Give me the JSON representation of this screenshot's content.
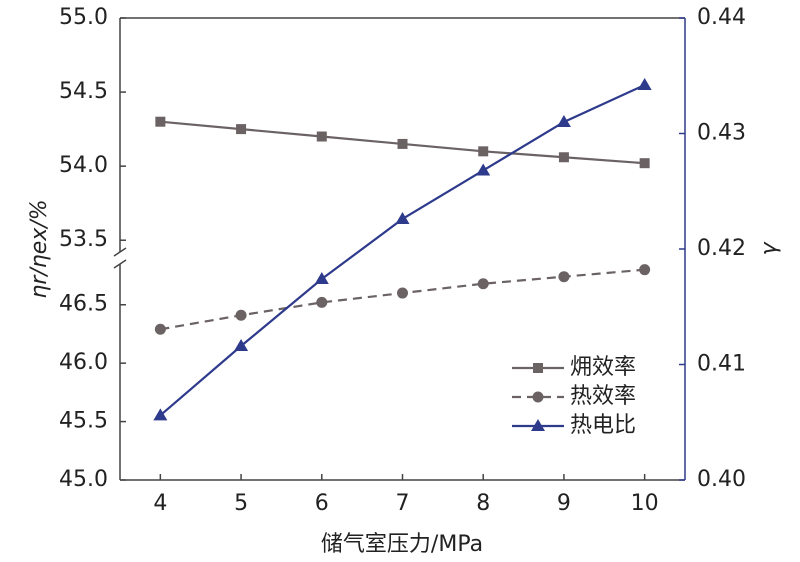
{
  "chart_data": {
    "type": "line",
    "xlabel": "储气室压力/MPa",
    "ylabel": "ηr/ηex/%",
    "y2label": "γ",
    "x": [
      4,
      5,
      6,
      7,
      8,
      9,
      10
    ],
    "xlim": [
      3.5,
      10.5
    ],
    "xticks": [
      4,
      5,
      6,
      7,
      8,
      9,
      10
    ],
    "y_segments": [
      {
        "ylim": [
          45.0,
          46.9
        ],
        "yticks": [
          {
            "value": 45.0,
            "label": "45.0"
          },
          45.5,
          {
            "value": 46.0,
            "label": "46.0"
          },
          46.5
        ]
      },
      {
        "ylim": [
          53.38,
          55.0
        ],
        "yticks": [
          53.5,
          {
            "value": 54.0,
            "label": "54.0"
          },
          54.5,
          {
            "value": 55.0,
            "label": "55.0"
          }
        ]
      }
    ],
    "y2lim": [
      0.4,
      0.44
    ],
    "y2ticks": [
      {
        "value": 0.4,
        "label": "0.40"
      },
      0.41,
      0.42,
      0.43,
      0.44
    ],
    "y2color": "#2e3a8c",
    "legend": "lower right",
    "series": [
      {
        "name": "㶲效率",
        "color": "#6b6264",
        "marker": "square",
        "dash": false,
        "values": [
          54.3,
          54.25,
          54.2,
          54.15,
          54.1,
          54.06,
          54.02
        ]
      },
      {
        "name": "热效率",
        "color": "#6b6264",
        "marker": "circle",
        "dash": true,
        "values": [
          46.29,
          46.41,
          46.52,
          46.6,
          46.68,
          46.74,
          46.8
        ]
      },
      {
        "name": "热电比",
        "color": "#2e3a8c",
        "marker": "triangle",
        "dash": false,
        "axis": "y2",
        "values": [
          0.4056,
          0.4116,
          0.4174,
          0.4226,
          0.4268,
          0.431,
          0.4342
        ]
      }
    ]
  }
}
